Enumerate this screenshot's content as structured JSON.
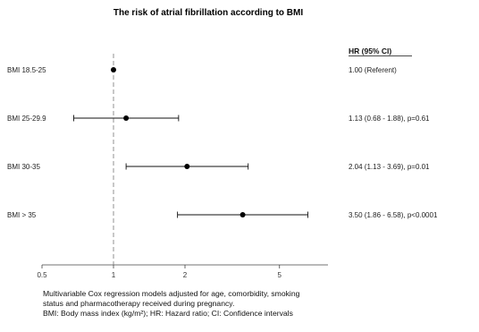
{
  "chart_data": {
    "type": "forest",
    "title": "The risk of atrial fibrillation according to BMI",
    "column_header": "HR (95% CI)",
    "reference_line": 1,
    "xlabel": "",
    "xlim": [
      0.5,
      8
    ],
    "x_scale": "log",
    "xticks": [
      0.5,
      1,
      2,
      5
    ],
    "xtick_labels": [
      "0.5",
      "1",
      "2",
      "5"
    ],
    "rows": [
      {
        "label": "BMI 18.5-25",
        "hr": 1.0,
        "ci_low": null,
        "ci_high": null,
        "text": "1.00 (Referent)"
      },
      {
        "label": "BMI 25-29.9",
        "hr": 1.13,
        "ci_low": 0.68,
        "ci_high": 1.88,
        "text": "1.13 (0.68 - 1.88), p=0.61"
      },
      {
        "label": "BMI 30-35",
        "hr": 2.04,
        "ci_low": 1.13,
        "ci_high": 3.69,
        "text": "2.04 (1.13 - 3.69), p=0.01"
      },
      {
        "label": "BMI > 35",
        "hr": 3.5,
        "ci_low": 1.86,
        "ci_high": 6.58,
        "text": "3.50 (1.86 - 6.58), p<0.0001"
      }
    ]
  },
  "footnote": {
    "line1": "Multivariable Cox regression models adjusted for age, comorbidity, smoking",
    "line2": "status and pharmacotherapy received during pregnancy.",
    "line3": "BMI: Body mass index (kg/m²); HR: Hazard ratio; CI: Confidence intervals"
  }
}
